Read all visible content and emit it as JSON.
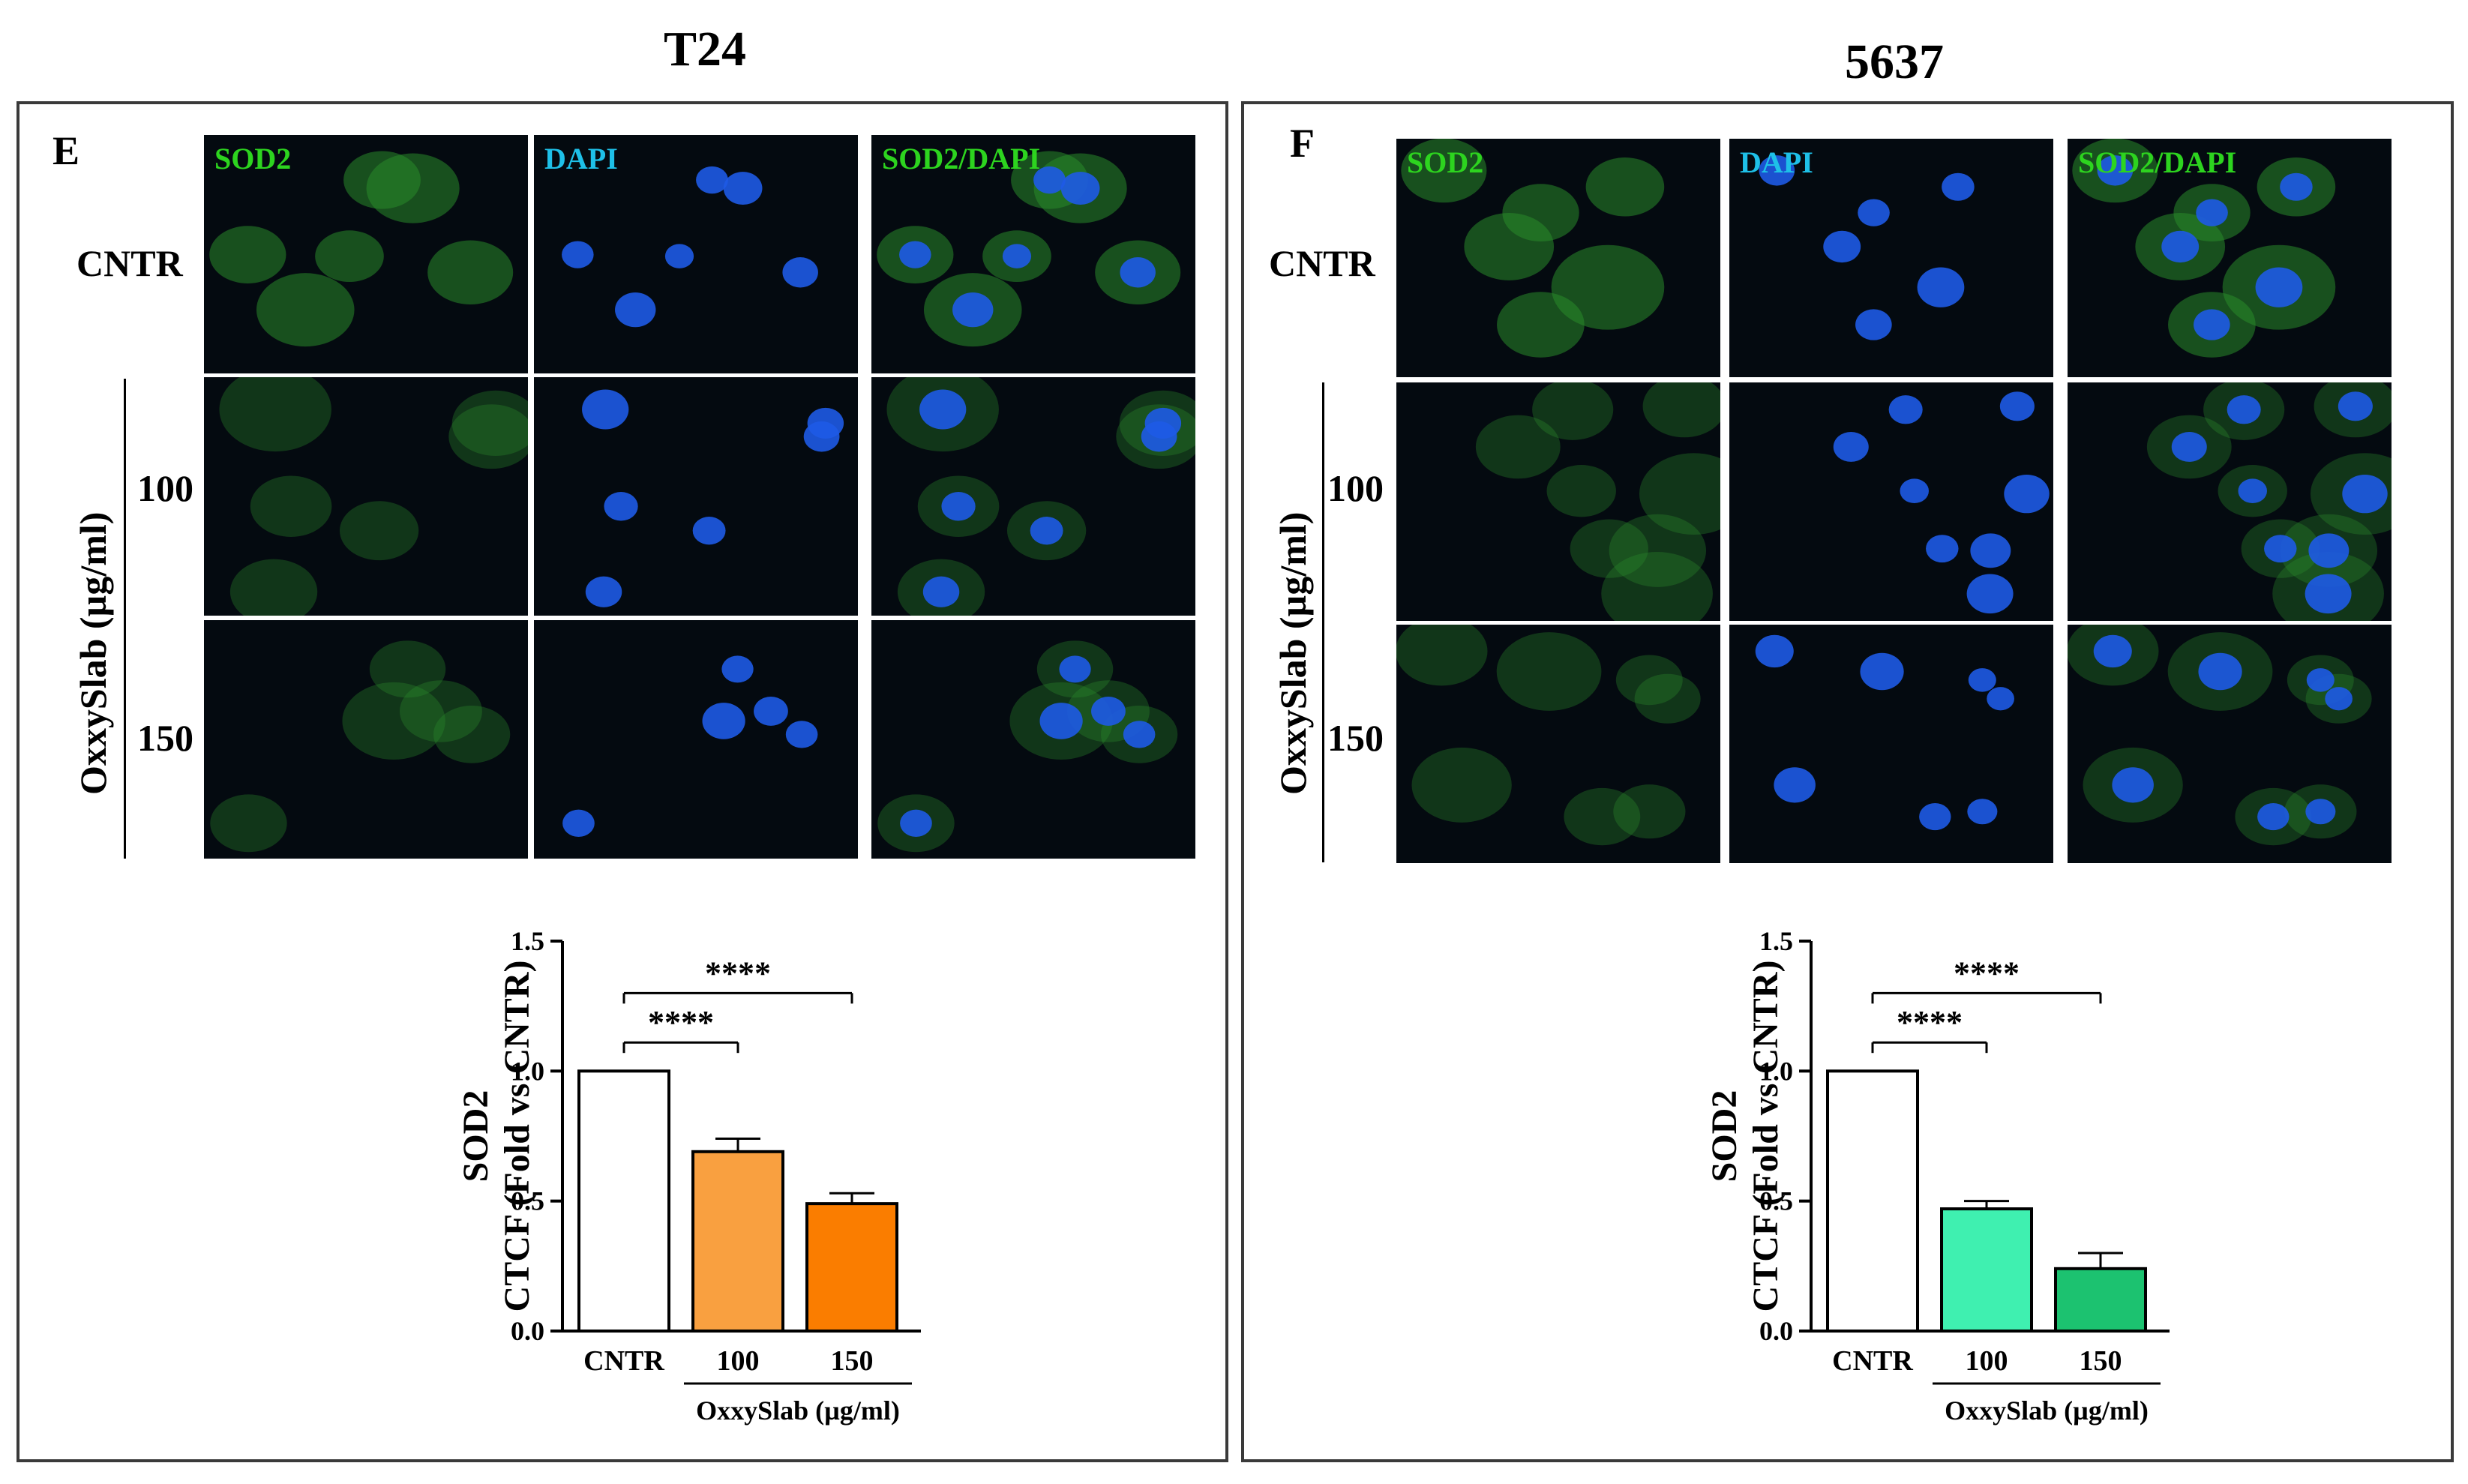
{
  "panels": [
    {
      "cell_line": "T24",
      "letter": "E",
      "channels": [
        "SOD2",
        "DAPI",
        "SOD2/DAPI"
      ],
      "rows": [
        "CNTR",
        "100",
        "150"
      ],
      "treatment_label": "OxxySlab (µg/ml)",
      "chart_data": {
        "type": "bar",
        "categories": [
          "CNTR",
          "100",
          "150"
        ],
        "values": [
          1.0,
          0.69,
          0.49
        ],
        "errors": [
          0,
          0.05,
          0.04
        ],
        "colors": [
          "#ffffff",
          "#f9a040",
          "#fa7d00"
        ],
        "ylabel": [
          "SOD2",
          "CTCF (Fold vs CNTR)"
        ],
        "xlabel": "OxxySlab (µg/ml)",
        "ylim": [
          0.0,
          1.5
        ],
        "yticks": [
          "0.0",
          "0.5",
          "1.0",
          "1.5"
        ],
        "significance": [
          {
            "from": "CNTR",
            "to": "100",
            "label": "****"
          },
          {
            "from": "CNTR",
            "to": "150",
            "label": "****"
          }
        ]
      }
    },
    {
      "cell_line": "5637",
      "letter": "F",
      "channels": [
        "SOD2",
        "DAPI",
        "SOD2/DAPI"
      ],
      "rows": [
        "CNTR",
        "100",
        "150"
      ],
      "treatment_label": "OxxySlab (µg/ml)",
      "chart_data": {
        "type": "bar",
        "categories": [
          "CNTR",
          "100",
          "150"
        ],
        "values": [
          1.0,
          0.47,
          0.24
        ],
        "errors": [
          0,
          0.03,
          0.06
        ],
        "colors": [
          "#ffffff",
          "#3ff0b0",
          "#1cc270"
        ],
        "ylabel": [
          "SOD2",
          "CTCF (Fold vs CNTR)"
        ],
        "xlabel": "OxxySlab (µg/ml)",
        "ylim": [
          0.0,
          1.5
        ],
        "yticks": [
          "0.0",
          "0.5",
          "1.0",
          "1.5"
        ],
        "significance": [
          {
            "from": "CNTR",
            "to": "100",
            "label": "****"
          },
          {
            "from": "CNTR",
            "to": "150",
            "label": "****"
          }
        ]
      }
    }
  ],
  "colors": {
    "sod2_label": "#2dd41f",
    "dapi_label": "#1ec0e8",
    "sod2_signal": "#2a8a2a",
    "dapi_signal": "#1e5ae6",
    "background": "#040a10",
    "frame": "#3a3a3a"
  }
}
